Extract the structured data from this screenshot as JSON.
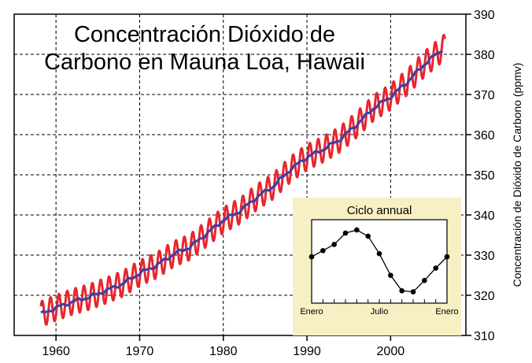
{
  "chart_data": [
    {
      "type": "line",
      "title_lines": [
        "Concentración Dióxido de",
        "Carbono en Mauna Loa, Hawaii"
      ],
      "xlabel": "",
      "ylabel": "Concentración de Dióxido de Carbono (ppmv)",
      "xlim": [
        1955,
        2009
      ],
      "ylim": [
        310,
        390
      ],
      "xticks": [
        1960,
        1970,
        1980,
        1990,
        2000
      ],
      "xtick_labels": [
        "1960",
        "1970",
        "1980",
        "1990",
        "2000"
      ],
      "yticks": [
        310,
        320,
        330,
        340,
        350,
        360,
        370,
        380,
        390
      ],
      "ytick_labels": [
        "310",
        "320",
        "330",
        "340",
        "350",
        "360",
        "370",
        "380",
        "390"
      ],
      "grid": true,
      "y_axis_side": "right",
      "series": [
        {
          "role": "monthly",
          "color": "#e8262d",
          "trend_x": [
            1958.2,
            1960,
            1962,
            1964,
            1966,
            1968,
            1970,
            1972,
            1974,
            1976,
            1978,
            1980,
            1982,
            1984,
            1986,
            1988,
            1990,
            1992,
            1994,
            1996,
            1998,
            2000,
            2002,
            2004,
            2006.3
          ],
          "trend_y": [
            315.3,
            316.9,
            318.4,
            319.6,
            321.2,
            322.9,
            325.5,
            327.4,
            330.2,
            332.0,
            335.3,
            338.7,
            341.0,
            344.4,
            347.2,
            351.3,
            354.4,
            356.4,
            358.9,
            362.6,
            366.7,
            369.4,
            373.1,
            377.5,
            381.5
          ],
          "seasonal_amplitude_ppmv": 3.2
        },
        {
          "role": "trend",
          "color": "#3a3fa8",
          "x": [
            1958.2,
            1960,
            1962,
            1964,
            1966,
            1968,
            1970,
            1972,
            1974,
            1976,
            1978,
            1980,
            1982,
            1984,
            1986,
            1988,
            1990,
            1992,
            1994,
            1996,
            1998,
            2000,
            2002,
            2004,
            2006.3
          ],
          "y": [
            315.3,
            316.9,
            318.4,
            319.6,
            321.2,
            322.9,
            325.5,
            327.4,
            330.2,
            332.0,
            335.3,
            338.7,
            341.0,
            344.4,
            347.2,
            351.3,
            354.4,
            356.4,
            358.9,
            362.6,
            366.7,
            369.4,
            373.1,
            377.5,
            381.5
          ]
        }
      ]
    },
    {
      "type": "line",
      "title": "Ciclo annual",
      "inset": true,
      "background": "#f7f0c4",
      "xtick_labels": [
        "Enero",
        "Julio",
        "Enero"
      ],
      "xlabel_positions": [
        0,
        6,
        12
      ],
      "x": [
        0,
        1,
        2,
        3,
        4,
        5,
        6,
        7,
        8,
        9,
        10,
        11,
        12
      ],
      "values": [
        0.0,
        0.6,
        1.2,
        2.3,
        2.6,
        2.0,
        0.3,
        -1.8,
        -3.3,
        -3.4,
        -2.3,
        -1.1,
        0.0
      ],
      "ylim": [
        -4.5,
        3.6
      ],
      "marker": "circle",
      "color": "#000000"
    }
  ]
}
